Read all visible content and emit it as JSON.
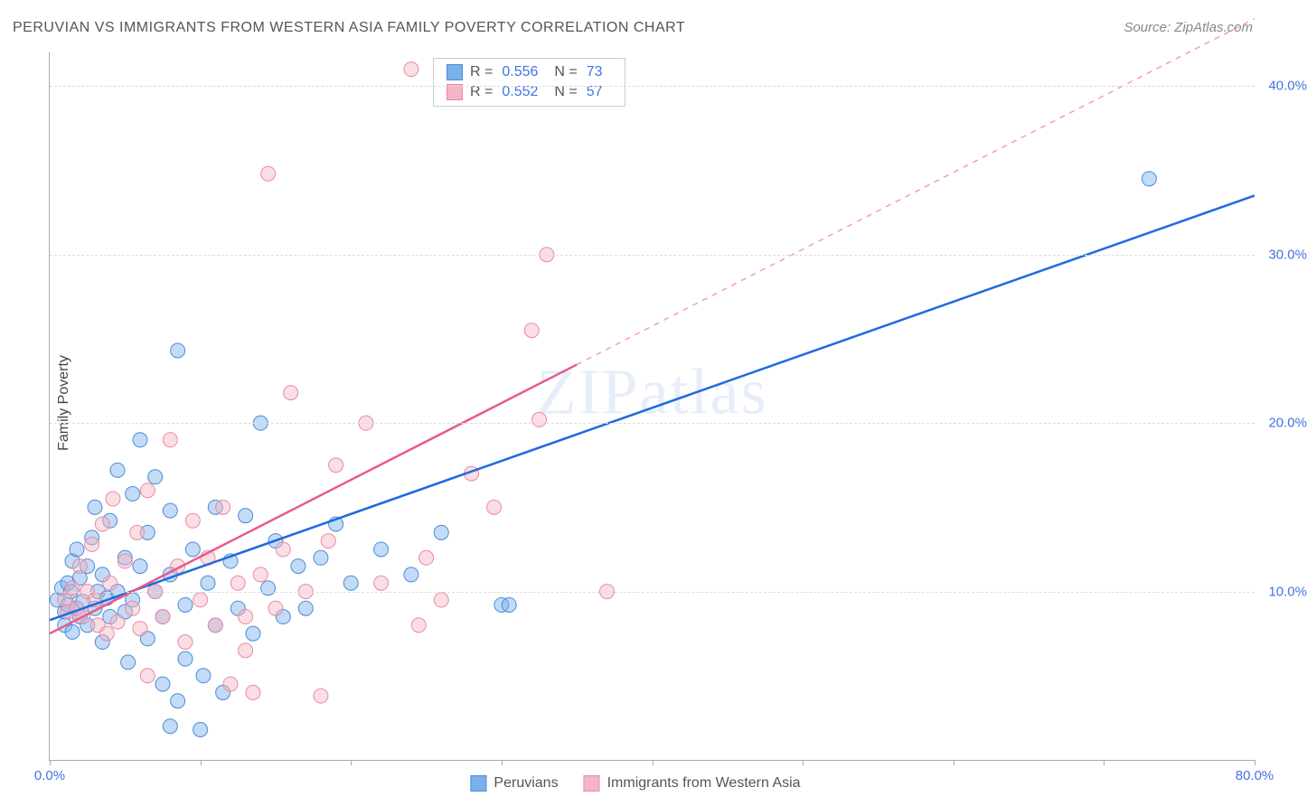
{
  "title": "PERUVIAN VS IMMIGRANTS FROM WESTERN ASIA FAMILY POVERTY CORRELATION CHART",
  "source": "Source: ZipAtlas.com",
  "watermark": "ZIPatlas",
  "ylabel": "Family Poverty",
  "chart": {
    "type": "scatter",
    "xlim": [
      0,
      80
    ],
    "ylim": [
      0,
      42
    ],
    "ytick_values": [
      10,
      20,
      30,
      40
    ],
    "ytick_labels": [
      "10.0%",
      "20.0%",
      "30.0%",
      "40.0%"
    ],
    "xtick_values": [
      0,
      10,
      20,
      30,
      40,
      50,
      60,
      70,
      80
    ],
    "xtick_label_left": "0.0%",
    "xtick_label_right": "80.0%",
    "grid_color": "#e0e0e0",
    "background_color": "#ffffff",
    "marker_radius": 8,
    "marker_opacity": 0.45,
    "line_width": 2.5
  },
  "series": [
    {
      "name": "Peruvians",
      "color": "#7AB0EA",
      "stroke": "#4a8cd8",
      "trend_color": "#1f6ae0",
      "R": "0.556",
      "N": "73",
      "trend": {
        "x1": 0,
        "y1": 8.3,
        "x2": 80,
        "y2": 33.5,
        "dashed": false,
        "dash_after_x": null
      },
      "points": [
        [
          0.5,
          9.5
        ],
        [
          0.8,
          10.2
        ],
        [
          1.0,
          8.8
        ],
        [
          1.0,
          8.0
        ],
        [
          1.2,
          9.2
        ],
        [
          1.2,
          10.5
        ],
        [
          1.4,
          10.0
        ],
        [
          1.5,
          11.8
        ],
        [
          1.5,
          7.6
        ],
        [
          1.8,
          9.0
        ],
        [
          1.8,
          12.5
        ],
        [
          2.0,
          8.5
        ],
        [
          2.0,
          10.8
        ],
        [
          2.2,
          9.4
        ],
        [
          2.5,
          8.0
        ],
        [
          2.5,
          11.5
        ],
        [
          2.8,
          13.2
        ],
        [
          3.0,
          9.0
        ],
        [
          3.0,
          15.0
        ],
        [
          3.2,
          10.0
        ],
        [
          3.5,
          7.0
        ],
        [
          3.5,
          11.0
        ],
        [
          3.8,
          9.6
        ],
        [
          4.0,
          8.5
        ],
        [
          4.0,
          14.2
        ],
        [
          4.5,
          10.0
        ],
        [
          4.5,
          17.2
        ],
        [
          5.0,
          8.8
        ],
        [
          5.0,
          12.0
        ],
        [
          5.2,
          5.8
        ],
        [
          5.5,
          15.8
        ],
        [
          5.5,
          9.5
        ],
        [
          6.0,
          11.5
        ],
        [
          6.0,
          19.0
        ],
        [
          6.5,
          7.2
        ],
        [
          6.5,
          13.5
        ],
        [
          7.0,
          10.0
        ],
        [
          7.0,
          16.8
        ],
        [
          7.5,
          4.5
        ],
        [
          7.5,
          8.5
        ],
        [
          8.0,
          14.8
        ],
        [
          8.0,
          11.0
        ],
        [
          8.5,
          24.3
        ],
        [
          8.5,
          3.5
        ],
        [
          9.0,
          9.2
        ],
        [
          9.0,
          6.0
        ],
        [
          9.5,
          12.5
        ],
        [
          10.2,
          5.0
        ],
        [
          10.5,
          10.5
        ],
        [
          11.0,
          15.0
        ],
        [
          11.0,
          8.0
        ],
        [
          11.5,
          4.0
        ],
        [
          12.0,
          11.8
        ],
        [
          12.5,
          9.0
        ],
        [
          13.0,
          14.5
        ],
        [
          13.5,
          7.5
        ],
        [
          14.0,
          20.0
        ],
        [
          14.5,
          10.2
        ],
        [
          15.0,
          13.0
        ],
        [
          15.5,
          8.5
        ],
        [
          16.5,
          11.5
        ],
        [
          17.0,
          9.0
        ],
        [
          18.0,
          12.0
        ],
        [
          19.0,
          14.0
        ],
        [
          20.0,
          10.5
        ],
        [
          22.0,
          12.5
        ],
        [
          24.0,
          11.0
        ],
        [
          26.0,
          13.5
        ],
        [
          30.0,
          9.2
        ],
        [
          30.5,
          9.2
        ],
        [
          73.0,
          34.5
        ],
        [
          8.0,
          2.0
        ],
        [
          10.0,
          1.8
        ]
      ]
    },
    {
      "name": "Immigrants from Western Asia",
      "color": "#F4B5C4",
      "stroke": "#e88ba3",
      "trend_color": "#e85a8a",
      "R": "0.552",
      "N": "57",
      "trend": {
        "x1": 0,
        "y1": 7.5,
        "x2": 80,
        "y2": 44.0,
        "dashed": true,
        "dash_after_x": 35
      },
      "points": [
        [
          1.0,
          9.5
        ],
        [
          1.2,
          8.8
        ],
        [
          1.5,
          10.2
        ],
        [
          1.8,
          9.0
        ],
        [
          2.0,
          11.5
        ],
        [
          2.2,
          8.5
        ],
        [
          2.5,
          10.0
        ],
        [
          2.8,
          12.8
        ],
        [
          3.0,
          9.5
        ],
        [
          3.2,
          8.0
        ],
        [
          3.5,
          14.0
        ],
        [
          3.8,
          7.5
        ],
        [
          4.0,
          10.5
        ],
        [
          4.2,
          15.5
        ],
        [
          4.5,
          8.2
        ],
        [
          5.0,
          11.8
        ],
        [
          5.5,
          9.0
        ],
        [
          5.8,
          13.5
        ],
        [
          6.0,
          7.8
        ],
        [
          6.5,
          16.0
        ],
        [
          6.5,
          5.0
        ],
        [
          7.0,
          10.0
        ],
        [
          7.5,
          8.5
        ],
        [
          8.0,
          19.0
        ],
        [
          8.5,
          11.5
        ],
        [
          9.0,
          7.0
        ],
        [
          9.5,
          14.2
        ],
        [
          10.0,
          9.5
        ],
        [
          10.5,
          12.0
        ],
        [
          11.0,
          8.0
        ],
        [
          11.5,
          15.0
        ],
        [
          12.0,
          4.5
        ],
        [
          12.5,
          10.5
        ],
        [
          13.0,
          8.5
        ],
        [
          13.5,
          4.0
        ],
        [
          14.0,
          11.0
        ],
        [
          14.5,
          34.8
        ],
        [
          15.0,
          9.0
        ],
        [
          15.5,
          12.5
        ],
        [
          16.0,
          21.8
        ],
        [
          17.0,
          10.0
        ],
        [
          18.0,
          3.8
        ],
        [
          18.5,
          13.0
        ],
        [
          19.0,
          17.5
        ],
        [
          21.0,
          20.0
        ],
        [
          22.0,
          10.5
        ],
        [
          24.0,
          41.0
        ],
        [
          24.5,
          8.0
        ],
        [
          25.0,
          12.0
        ],
        [
          26.0,
          9.5
        ],
        [
          28.0,
          17.0
        ],
        [
          29.5,
          15.0
        ],
        [
          32.0,
          25.5
        ],
        [
          33.0,
          30.0
        ],
        [
          37.0,
          10.0
        ],
        [
          32.5,
          20.2
        ],
        [
          13.0,
          6.5
        ]
      ]
    }
  ],
  "legend": {
    "R_label": "R =",
    "N_label": "N ="
  }
}
